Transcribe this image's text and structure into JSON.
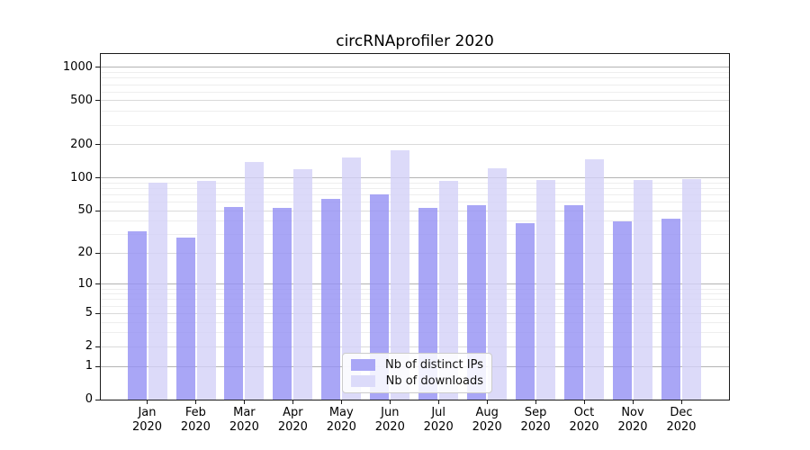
{
  "chart_data": {
    "type": "bar",
    "title": "circRNAprofiler 2020",
    "categories": [
      "Jan 2020",
      "Feb 2020",
      "Mar 2020",
      "Apr 2020",
      "May 2020",
      "Jun 2020",
      "Jul 2020",
      "Aug 2020",
      "Sep 2020",
      "Oct 2020",
      "Nov 2020",
      "Dec 2020"
    ],
    "series": [
      {
        "name": "Nb of distinct IPs",
        "color": "#a9a6f6",
        "fill_rgba": "rgba(150,146,244,0.82)",
        "values": [
          32,
          28,
          54,
          53,
          64,
          70,
          53,
          56,
          38,
          56,
          40,
          42
        ]
      },
      {
        "name": "Nb of downloads",
        "color": "#dcdbfa",
        "fill_rgba": "rgba(211,209,248,0.80)",
        "values": [
          91,
          94,
          139,
          120,
          153,
          177,
          94,
          123,
          95,
          148,
          96,
          98
        ]
      }
    ],
    "yscale": "log1p",
    "ylim": [
      0,
      1300
    ],
    "yticks": [
      0,
      1,
      2,
      5,
      10,
      20,
      50,
      100,
      200,
      500,
      1000
    ],
    "grid": true,
    "gridline_values": {
      "decade": [
        1,
        10,
        100,
        1000
      ],
      "labeled": [
        2,
        5,
        20,
        50,
        200,
        500
      ],
      "minor": [
        3,
        4,
        6,
        7,
        8,
        9,
        30,
        40,
        60,
        70,
        80,
        90,
        300,
        400,
        600,
        700,
        800,
        900
      ]
    },
    "grid_colors": {
      "decade": "#b3b3b3",
      "labeled": "#dadada",
      "minor": "#eeeeee"
    },
    "legend_position": "lower center inside",
    "xlabel": "",
    "ylabel": ""
  }
}
